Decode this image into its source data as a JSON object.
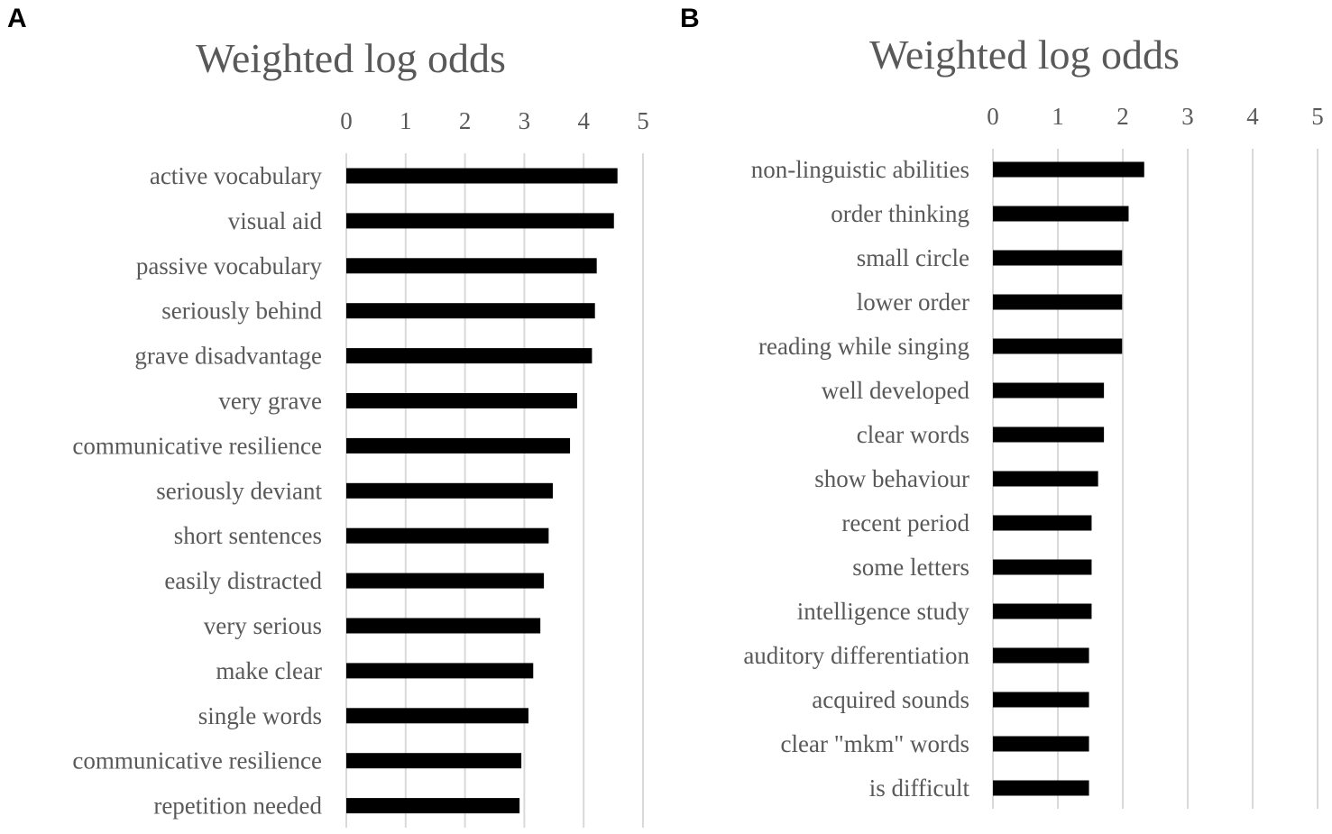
{
  "chart_data": [
    {
      "panel_label": "A",
      "type": "bar",
      "orientation": "horizontal",
      "title": "Weighted log odds",
      "xlim": [
        0,
        5
      ],
      "x_ticks": [
        "0",
        "1",
        "2",
        "3",
        "4",
        "5"
      ],
      "grid": true,
      "bar_color": "#000000",
      "categories": [
        "active vocabulary",
        "visual aid",
        "passive vocabulary",
        "seriously behind",
        "grave disadvantage",
        "very grave",
        "communicative resilience",
        "seriously deviant",
        "short sentences",
        "easily distracted",
        "very serious",
        "make clear",
        "single words",
        "communicative resilience",
        "repetition needed"
      ],
      "values": [
        4.57,
        4.51,
        4.22,
        4.19,
        4.14,
        3.89,
        3.77,
        3.48,
        3.41,
        3.33,
        3.27,
        3.15,
        3.07,
        2.95,
        2.92
      ]
    },
    {
      "panel_label": "B",
      "type": "bar",
      "orientation": "horizontal",
      "title": "Weighted log odds",
      "xlim": [
        0,
        5
      ],
      "x_ticks": [
        "0",
        "1",
        "2",
        "3",
        "4",
        "5"
      ],
      "grid": true,
      "bar_color": "#000000",
      "categories": [
        "non-linguistic abilities",
        "order thinking",
        "small circle",
        "lower order",
        "reading while singing",
        "well developed",
        "clear words",
        "show behaviour",
        "recent period",
        "some letters",
        "intelligence study",
        "auditory differentiation",
        "acquired sounds",
        "clear \"mkm\" words",
        "is difficult"
      ],
      "values": [
        2.33,
        2.09,
        1.99,
        1.99,
        1.99,
        1.71,
        1.71,
        1.62,
        1.52,
        1.52,
        1.52,
        1.48,
        1.48,
        1.48,
        1.48
      ]
    }
  ]
}
